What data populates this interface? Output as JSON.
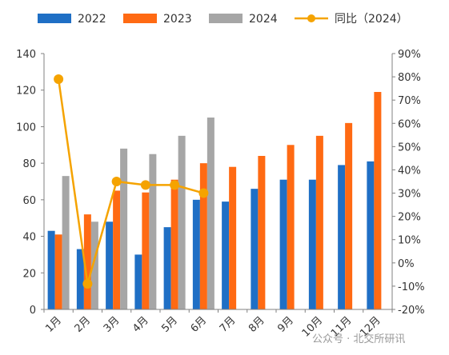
{
  "chart_data": {
    "type": "bar",
    "categories": [
      "1月",
      "2月",
      "3月",
      "4月",
      "5月",
      "6月",
      "7月",
      "8月",
      "9月",
      "10月",
      "11月",
      "12月"
    ],
    "series": [
      {
        "name": "2022",
        "type": "bar",
        "axis": "left",
        "color": "#1F6FC5",
        "values": [
          43,
          33,
          48,
          30,
          45,
          60,
          59,
          66,
          71,
          71,
          79,
          81
        ]
      },
      {
        "name": "2023",
        "type": "bar",
        "axis": "left",
        "color": "#FF6A13",
        "values": [
          41,
          52,
          65,
          64,
          71,
          80,
          78,
          84,
          90,
          95,
          102,
          119
        ]
      },
      {
        "name": "2024",
        "type": "bar",
        "axis": "left",
        "color": "#A6A6A6",
        "values": [
          73,
          48,
          88,
          85,
          95,
          105,
          null,
          null,
          null,
          null,
          null,
          null
        ]
      },
      {
        "name": "同比（2024）",
        "type": "line",
        "axis": "right",
        "color": "#F5A300",
        "values": [
          0.79,
          -0.09,
          0.35,
          0.335,
          0.335,
          0.3,
          null,
          null,
          null,
          null,
          null,
          null
        ]
      }
    ],
    "left_axis": {
      "min": 0,
      "max": 140,
      "step": 20,
      "ticks": [
        "0",
        "20",
        "40",
        "60",
        "80",
        "100",
        "120",
        "140"
      ]
    },
    "right_axis": {
      "min": -0.2,
      "max": 0.9,
      "step": 0.1,
      "ticks": [
        "-20%",
        "-10%",
        "0%",
        "10%",
        "20%",
        "30%",
        "40%",
        "50%",
        "60%",
        "70%",
        "80%",
        "90%"
      ]
    },
    "legend": {
      "position": "top",
      "items": [
        {
          "label": "2022",
          "shape": "bar",
          "color": "#1F6FC5"
        },
        {
          "label": "2023",
          "shape": "bar",
          "color": "#FF6A13"
        },
        {
          "label": "2024",
          "shape": "bar",
          "color": "#A6A6A6"
        },
        {
          "label": "同比（2024）",
          "shape": "line-marker",
          "color": "#F5A300"
        }
      ]
    },
    "grid": false,
    "watermark": "公众号 · 北交所研讯"
  }
}
